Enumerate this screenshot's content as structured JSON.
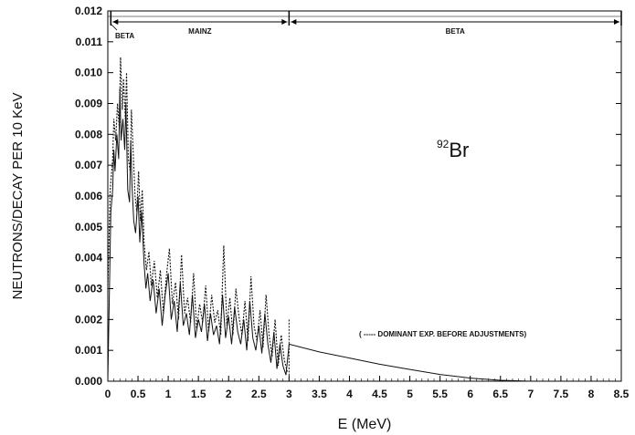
{
  "chart_data": {
    "type": "line",
    "xlabel": "E  (MeV)",
    "ylabel": "NEUTRONS/DECAY PER 10 KeV",
    "xlim": [
      0,
      8.5
    ],
    "ylim": [
      0,
      0.012
    ],
    "x_ticks": [
      "0",
      "0.5",
      "1",
      "1.5",
      "2",
      "2.5",
      "3",
      "3.5",
      "4",
      "4.5",
      "5",
      "5.5",
      "6",
      "6.5",
      "7",
      "7.5",
      "8",
      "8.5"
    ],
    "y_ticks": [
      "0.000",
      "0.001",
      "0.002",
      "0.003",
      "0.004",
      "0.005",
      "0.006",
      "0.007",
      "0.008",
      "0.009",
      "0.010",
      "0.011",
      "0.012"
    ],
    "annotation": {
      "superscript": "92",
      "element": "Br"
    },
    "legend_text": "( ----- DOMINANT EXP. BEFORE ADJUSTMENTS)",
    "regions": [
      {
        "label": "BETA",
        "x_start": 0,
        "x_end": 0.05
      },
      {
        "label": "MAINZ",
        "x_start": 0.05,
        "x_end": 3.0
      },
      {
        "label": "BETA",
        "x_start": 3.0,
        "x_end": 8.5
      }
    ],
    "grid": false,
    "series": [
      {
        "style": "solid",
        "x": [
          0.0,
          0.05,
          0.08,
          0.1,
          0.12,
          0.15,
          0.18,
          0.2,
          0.22,
          0.25,
          0.28,
          0.3,
          0.33,
          0.36,
          0.38,
          0.4,
          0.43,
          0.46,
          0.5,
          0.53,
          0.56,
          0.6,
          0.63,
          0.66,
          0.7,
          0.75,
          0.8,
          0.85,
          0.9,
          0.95,
          1.0,
          1.05,
          1.1,
          1.15,
          1.2,
          1.25,
          1.3,
          1.35,
          1.4,
          1.45,
          1.5,
          1.55,
          1.6,
          1.65,
          1.7,
          1.75,
          1.8,
          1.85,
          1.9,
          1.95,
          2.0,
          2.05,
          2.1,
          2.15,
          2.2,
          2.25,
          2.3,
          2.35,
          2.4,
          2.45,
          2.5,
          2.55,
          2.6,
          2.65,
          2.7,
          2.75,
          2.8,
          2.85,
          2.9,
          2.95,
          3.0,
          3.5,
          4.0,
          4.5,
          5.0,
          5.5,
          6.0,
          6.5,
          7.0
        ],
        "y": [
          0.0,
          0.0055,
          0.0062,
          0.0075,
          0.0068,
          0.008,
          0.0072,
          0.0095,
          0.0078,
          0.0085,
          0.0075,
          0.009,
          0.0062,
          0.0058,
          0.0078,
          0.0064,
          0.0052,
          0.0048,
          0.006,
          0.0045,
          0.0055,
          0.0038,
          0.003,
          0.0035,
          0.0026,
          0.0033,
          0.0022,
          0.003,
          0.0018,
          0.0028,
          0.0035,
          0.002,
          0.0026,
          0.0016,
          0.0032,
          0.0018,
          0.0022,
          0.0015,
          0.0028,
          0.0014,
          0.002,
          0.0016,
          0.0025,
          0.0013,
          0.0022,
          0.0015,
          0.0018,
          0.0012,
          0.0028,
          0.0014,
          0.0021,
          0.0012,
          0.0024,
          0.0016,
          0.0012,
          0.002,
          0.001,
          0.0026,
          0.0014,
          0.001,
          0.0018,
          0.0009,
          0.0022,
          0.0012,
          0.0006,
          0.0016,
          0.0004,
          0.0012,
          0.0005,
          0.0002,
          0.0012,
          0.00095,
          0.00075,
          0.00055,
          0.00038,
          0.00022,
          0.0001,
          3e-05,
          0.0
        ]
      },
      {
        "style": "dotted",
        "x": [
          0.0,
          0.04,
          0.08,
          0.1,
          0.13,
          0.16,
          0.19,
          0.21,
          0.24,
          0.26,
          0.29,
          0.31,
          0.34,
          0.37,
          0.39,
          0.42,
          0.45,
          0.48,
          0.51,
          0.54,
          0.57,
          0.6,
          0.64,
          0.68,
          0.72,
          0.77,
          0.82,
          0.87,
          0.92,
          0.97,
          1.02,
          1.07,
          1.12,
          1.17,
          1.22,
          1.27,
          1.32,
          1.37,
          1.42,
          1.47,
          1.52,
          1.57,
          1.62,
          1.67,
          1.72,
          1.77,
          1.82,
          1.87,
          1.92,
          1.97,
          2.02,
          2.07,
          2.12,
          2.17,
          2.22,
          2.27,
          2.32,
          2.37,
          2.42,
          2.47,
          2.52,
          2.57,
          2.62,
          2.67,
          2.72,
          2.77,
          2.82,
          2.87,
          2.92,
          2.97
        ],
        "y": [
          0.003,
          0.0062,
          0.0072,
          0.0085,
          0.0078,
          0.009,
          0.0082,
          0.0105,
          0.0088,
          0.0098,
          0.0085,
          0.01,
          0.0072,
          0.0068,
          0.0088,
          0.0074,
          0.006,
          0.0055,
          0.0068,
          0.0052,
          0.0062,
          0.0045,
          0.0036,
          0.0042,
          0.0031,
          0.0039,
          0.0027,
          0.0036,
          0.0022,
          0.0034,
          0.0043,
          0.0025,
          0.0032,
          0.002,
          0.0041,
          0.0022,
          0.0027,
          0.0019,
          0.0035,
          0.0017,
          0.0025,
          0.0019,
          0.0031,
          0.0016,
          0.0028,
          0.0019,
          0.0023,
          0.0015,
          0.0044,
          0.0018,
          0.0027,
          0.0015,
          0.003,
          0.0021,
          0.0015,
          0.0026,
          0.0013,
          0.0034,
          0.0018,
          0.0013,
          0.0023,
          0.0011,
          0.0028,
          0.0015,
          0.0008,
          0.002,
          0.0005,
          0.0015,
          0.0007,
          0.0003
        ]
      }
    ]
  }
}
